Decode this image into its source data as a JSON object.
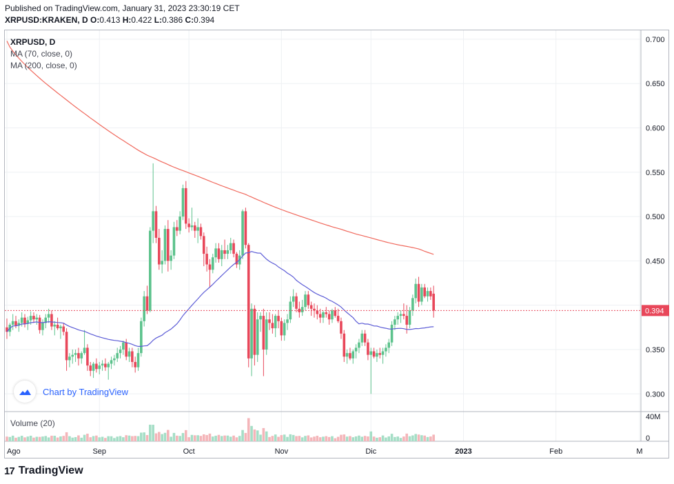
{
  "header": {
    "published": "Published on TradingView.com, January 31, 2023 23:30:19 CET",
    "symbol_prefix": "XRPUSD:KRAKEN, D",
    "o_label": "O:",
    "o_value": "0.413",
    "h_label": "H:",
    "h_value": "0.422",
    "l_label": "L:",
    "l_value": "0.386",
    "c_label": "C:",
    "c_value": "0.394"
  },
  "legend": {
    "title": "XRPUSD, D",
    "ma70": "MA (70, close, 0)",
    "ma200": "MA (200, close, 0)",
    "volume": "Volume (20)"
  },
  "watermark": {
    "text": "Chart by TradingView"
  },
  "footer": {
    "brand": "TradingView",
    "logo_glyph": "17"
  },
  "colors": {
    "up": "#26a69a",
    "down": "#ef5350",
    "up_soft": "#5cc28c",
    "down_soft": "#e8475a",
    "ma70": "#5b5bd6",
    "ma200": "#f0675b",
    "price_line": "#e8475a"
  },
  "chart_data": {
    "type": "candlestick",
    "symbol": "XRPUSD",
    "interval": "D",
    "ylim": [
      0.28,
      0.71
    ],
    "price_ticks": [
      "0.300",
      "0.350",
      "0.400",
      "0.450",
      "0.500",
      "0.550",
      "0.600",
      "0.650",
      "0.700"
    ],
    "last_price": "0.394",
    "volume_ticks": [
      "40M",
      "0"
    ],
    "x_ticks": [
      {
        "label": "Ago",
        "day": 0
      },
      {
        "label": "Sep",
        "day": 31
      },
      {
        "label": "Oct",
        "day": 61
      },
      {
        "label": "Nov",
        "day": 92
      },
      {
        "label": "Dic",
        "day": 122
      },
      {
        "label": "2023",
        "day": 153
      },
      {
        "label": "Feb",
        "day": 184
      },
      {
        "label": "M",
        "day": 212
      }
    ],
    "start_date": "2022-08-01",
    "candles": [
      [
        0.375,
        0.385,
        0.362,
        0.37
      ],
      [
        0.37,
        0.38,
        0.365,
        0.378
      ],
      [
        0.378,
        0.39,
        0.372,
        0.382
      ],
      [
        0.382,
        0.388,
        0.374,
        0.377
      ],
      [
        0.377,
        0.384,
        0.37,
        0.38
      ],
      [
        0.38,
        0.392,
        0.376,
        0.386
      ],
      [
        0.386,
        0.39,
        0.375,
        0.379
      ],
      [
        0.379,
        0.387,
        0.372,
        0.383
      ],
      [
        0.383,
        0.393,
        0.378,
        0.388
      ],
      [
        0.388,
        0.392,
        0.38,
        0.384
      ],
      [
        0.384,
        0.39,
        0.378,
        0.386
      ],
      [
        0.386,
        0.389,
        0.368,
        0.372
      ],
      [
        0.372,
        0.384,
        0.366,
        0.38
      ],
      [
        0.38,
        0.39,
        0.374,
        0.386
      ],
      [
        0.386,
        0.396,
        0.38,
        0.39
      ],
      [
        0.39,
        0.394,
        0.372,
        0.376
      ],
      [
        0.376,
        0.382,
        0.366,
        0.378
      ],
      [
        0.378,
        0.386,
        0.372,
        0.374
      ],
      [
        0.374,
        0.378,
        0.362,
        0.376
      ],
      [
        0.376,
        0.38,
        0.366,
        0.37
      ],
      [
        0.37,
        0.374,
        0.326,
        0.338
      ],
      [
        0.338,
        0.346,
        0.33,
        0.342
      ],
      [
        0.342,
        0.35,
        0.334,
        0.344
      ],
      [
        0.344,
        0.35,
        0.336,
        0.346
      ],
      [
        0.346,
        0.352,
        0.332,
        0.34
      ],
      [
        0.34,
        0.348,
        0.334,
        0.346
      ],
      [
        0.346,
        0.372,
        0.344,
        0.352
      ],
      [
        0.352,
        0.356,
        0.326,
        0.332
      ],
      [
        0.332,
        0.336,
        0.32,
        0.326
      ],
      [
        0.326,
        0.336,
        0.318,
        0.334
      ],
      [
        0.334,
        0.34,
        0.324,
        0.328
      ],
      [
        0.328,
        0.336,
        0.322,
        0.332
      ],
      [
        0.332,
        0.338,
        0.326,
        0.334
      ],
      [
        0.334,
        0.34,
        0.326,
        0.33
      ],
      [
        0.33,
        0.336,
        0.316,
        0.334
      ],
      [
        0.334,
        0.342,
        0.328,
        0.338
      ],
      [
        0.338,
        0.344,
        0.332,
        0.34
      ],
      [
        0.34,
        0.352,
        0.336,
        0.346
      ],
      [
        0.346,
        0.354,
        0.34,
        0.35
      ],
      [
        0.35,
        0.36,
        0.344,
        0.358
      ],
      [
        0.358,
        0.362,
        0.338,
        0.342
      ],
      [
        0.342,
        0.352,
        0.336,
        0.348
      ],
      [
        0.348,
        0.352,
        0.33,
        0.336
      ],
      [
        0.336,
        0.342,
        0.324,
        0.33
      ],
      [
        0.33,
        0.352,
        0.326,
        0.346
      ],
      [
        0.346,
        0.386,
        0.342,
        0.382
      ],
      [
        0.382,
        0.416,
        0.376,
        0.41
      ],
      [
        0.41,
        0.422,
        0.39,
        0.394
      ],
      [
        0.394,
        0.488,
        0.392,
        0.484
      ],
      [
        0.484,
        0.56,
        0.47,
        0.506
      ],
      [
        0.506,
        0.512,
        0.47,
        0.476
      ],
      [
        0.476,
        0.486,
        0.44,
        0.446
      ],
      [
        0.446,
        0.462,
        0.436,
        0.45
      ],
      [
        0.45,
        0.49,
        0.446,
        0.486
      ],
      [
        0.486,
        0.496,
        0.438,
        0.45
      ],
      [
        0.45,
        0.462,
        0.44,
        0.456
      ],
      [
        0.456,
        0.494,
        0.452,
        0.488
      ],
      [
        0.488,
        0.496,
        0.478,
        0.484
      ],
      [
        0.484,
        0.506,
        0.48,
        0.5
      ],
      [
        0.5,
        0.536,
        0.496,
        0.532
      ],
      [
        0.532,
        0.54,
        0.486,
        0.492
      ],
      [
        0.492,
        0.498,
        0.482,
        0.488
      ],
      [
        0.488,
        0.51,
        0.484,
        0.49
      ],
      [
        0.49,
        0.494,
        0.476,
        0.484
      ],
      [
        0.484,
        0.498,
        0.47,
        0.488
      ],
      [
        0.488,
        0.492,
        0.474,
        0.478
      ],
      [
        0.478,
        0.482,
        0.444,
        0.458
      ],
      [
        0.458,
        0.466,
        0.438,
        0.446
      ],
      [
        0.446,
        0.452,
        0.42,
        0.44
      ],
      [
        0.44,
        0.458,
        0.436,
        0.454
      ],
      [
        0.454,
        0.47,
        0.448,
        0.464
      ],
      [
        0.464,
        0.47,
        0.448,
        0.452
      ],
      [
        0.452,
        0.468,
        0.444,
        0.462
      ],
      [
        0.462,
        0.474,
        0.452,
        0.458
      ],
      [
        0.458,
        0.468,
        0.452,
        0.462
      ],
      [
        0.462,
        0.476,
        0.458,
        0.47
      ],
      [
        0.47,
        0.474,
        0.454,
        0.458
      ],
      [
        0.458,
        0.46,
        0.442,
        0.446
      ],
      [
        0.446,
        0.462,
        0.44,
        0.456
      ],
      [
        0.456,
        0.508,
        0.452,
        0.506
      ],
      [
        0.506,
        0.51,
        0.464,
        0.468
      ],
      [
        0.468,
        0.47,
        0.33,
        0.34
      ],
      [
        0.34,
        0.402,
        0.32,
        0.396
      ],
      [
        0.396,
        0.4,
        0.332,
        0.344
      ],
      [
        0.344,
        0.392,
        0.336,
        0.384
      ],
      [
        0.384,
        0.392,
        0.37,
        0.388
      ],
      [
        0.388,
        0.396,
        0.32,
        0.35
      ],
      [
        0.35,
        0.392,
        0.344,
        0.384
      ],
      [
        0.384,
        0.392,
        0.372,
        0.38
      ],
      [
        0.38,
        0.39,
        0.368,
        0.374
      ],
      [
        0.374,
        0.39,
        0.364,
        0.388
      ],
      [
        0.388,
        0.394,
        0.374,
        0.382
      ],
      [
        0.382,
        0.386,
        0.36,
        0.366
      ],
      [
        0.366,
        0.384,
        0.36,
        0.38
      ],
      [
        0.38,
        0.39,
        0.372,
        0.384
      ],
      [
        0.384,
        0.41,
        0.38,
        0.404
      ],
      [
        0.404,
        0.418,
        0.398,
        0.41
      ],
      [
        0.41,
        0.414,
        0.392,
        0.396
      ],
      [
        0.396,
        0.404,
        0.386,
        0.392
      ],
      [
        0.392,
        0.406,
        0.388,
        0.398
      ],
      [
        0.398,
        0.416,
        0.394,
        0.412
      ],
      [
        0.412,
        0.416,
        0.396,
        0.4
      ],
      [
        0.4,
        0.404,
        0.388,
        0.396
      ],
      [
        0.396,
        0.402,
        0.386,
        0.394
      ],
      [
        0.394,
        0.4,
        0.384,
        0.39
      ],
      [
        0.39,
        0.396,
        0.38,
        0.386
      ],
      [
        0.386,
        0.394,
        0.38,
        0.392
      ],
      [
        0.392,
        0.398,
        0.386,
        0.39
      ],
      [
        0.39,
        0.394,
        0.378,
        0.384
      ],
      [
        0.384,
        0.396,
        0.38,
        0.394
      ],
      [
        0.394,
        0.398,
        0.386,
        0.388
      ],
      [
        0.388,
        0.396,
        0.38,
        0.382
      ],
      [
        0.382,
        0.386,
        0.362,
        0.368
      ],
      [
        0.368,
        0.372,
        0.336,
        0.342
      ],
      [
        0.342,
        0.35,
        0.334,
        0.346
      ],
      [
        0.346,
        0.352,
        0.338,
        0.34
      ],
      [
        0.34,
        0.35,
        0.334,
        0.348
      ],
      [
        0.348,
        0.356,
        0.34,
        0.352
      ],
      [
        0.352,
        0.362,
        0.346,
        0.358
      ],
      [
        0.358,
        0.372,
        0.354,
        0.368
      ],
      [
        0.368,
        0.372,
        0.354,
        0.358
      ],
      [
        0.358,
        0.362,
        0.338,
        0.344
      ],
      [
        0.344,
        0.352,
        0.3,
        0.348
      ],
      [
        0.348,
        0.352,
        0.34,
        0.342
      ],
      [
        0.342,
        0.35,
        0.336,
        0.346
      ],
      [
        0.346,
        0.352,
        0.34,
        0.344
      ],
      [
        0.344,
        0.352,
        0.334,
        0.348
      ],
      [
        0.348,
        0.356,
        0.342,
        0.352
      ],
      [
        0.352,
        0.362,
        0.346,
        0.358
      ],
      [
        0.358,
        0.382,
        0.354,
        0.378
      ],
      [
        0.378,
        0.388,
        0.372,
        0.384
      ],
      [
        0.384,
        0.392,
        0.378,
        0.388
      ],
      [
        0.388,
        0.394,
        0.38,
        0.39
      ],
      [
        0.39,
        0.402,
        0.384,
        0.388
      ],
      [
        0.388,
        0.4,
        0.368,
        0.378
      ],
      [
        0.378,
        0.398,
        0.374,
        0.394
      ],
      [
        0.394,
        0.412,
        0.388,
        0.408
      ],
      [
        0.408,
        0.43,
        0.402,
        0.424
      ],
      [
        0.424,
        0.432,
        0.398,
        0.404
      ],
      [
        0.404,
        0.424,
        0.4,
        0.42
      ],
      [
        0.42,
        0.424,
        0.408,
        0.41
      ],
      [
        0.41,
        0.42,
        0.404,
        0.416
      ],
      [
        0.416,
        0.42,
        0.406,
        0.41
      ],
      [
        0.413,
        0.422,
        0.386,
        0.394
      ]
    ],
    "ma70": [],
    "ma200": []
  }
}
